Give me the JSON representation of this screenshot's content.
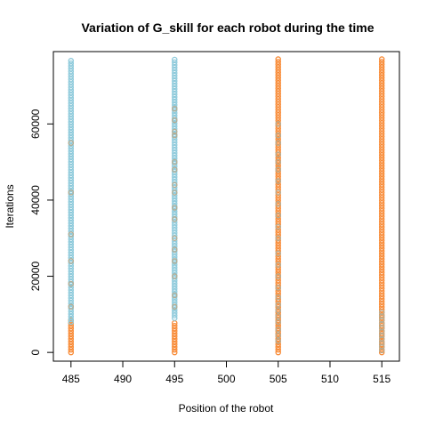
{
  "chart_data": {
    "type": "scatter",
    "title": "Variation of G_skill for each robot during the time",
    "xlabel": "Position of the robot",
    "ylabel": "Iterations",
    "xlim": [
      483.3,
      516.7
    ],
    "ylim": [
      -2300,
      79000
    ],
    "x_ticks": [
      485,
      490,
      495,
      500,
      505,
      510,
      515
    ],
    "y_ticks": [
      0,
      20000,
      40000,
      60000
    ],
    "grid": false,
    "legend": "none",
    "colors": {
      "blue": "#8ecadb",
      "orange": "#f88b37",
      "mix": "#b7ad93"
    },
    "columns": [
      {
        "x": 485,
        "blue_range": [
          8000,
          77000
        ],
        "orange_range": [
          0,
          9000
        ],
        "mixed_points": [
          12000,
          18000,
          24000,
          31000,
          42000,
          55000
        ]
      },
      {
        "x": 495,
        "blue_range": [
          9000,
          77000
        ],
        "orange_range": [
          0,
          8000
        ],
        "mixed_points": [
          12000,
          15000,
          20000,
          24000,
          27000,
          30000,
          35000,
          38000,
          42000,
          44000,
          48000,
          50000,
          57000,
          58000,
          61000,
          64000
        ]
      },
      {
        "x": 505,
        "blue_range": [],
        "orange_range": [
          0,
          77000
        ],
        "mixed_points": [
          3000,
          4500,
          6000,
          8000,
          9500,
          11000,
          12500,
          14500,
          17000,
          20000,
          23000,
          26000,
          30000,
          33000,
          36000,
          39000,
          42000,
          45000,
          48000,
          50000,
          52000,
          55000,
          57000,
          60000
        ]
      },
      {
        "x": 515,
        "blue_range": [],
        "orange_range": [
          0,
          77000
        ],
        "mixed_points": [
          500,
          1500,
          2500,
          3500,
          4500,
          5500,
          6500,
          7500,
          8500,
          9500,
          10500
        ]
      }
    ]
  }
}
